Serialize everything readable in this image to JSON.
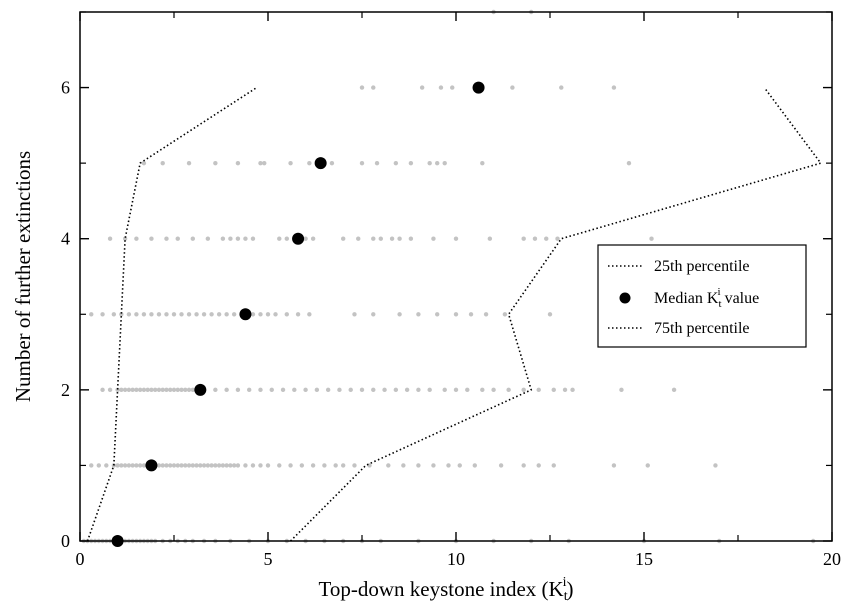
{
  "chart_data": {
    "type": "scatter",
    "xlabel": "Top-down keystone index (K",
    "xlabel_sub": "t",
    "xlabel_sup": "i",
    "xlabel_end": ")",
    "ylabel": "Number of further extinctions",
    "xlim": [
      0,
      20
    ],
    "ylim": [
      0,
      7
    ],
    "xticks": [
      0,
      5,
      10,
      15,
      20
    ],
    "yticks": [
      0,
      2,
      4,
      6
    ],
    "grid": false,
    "legend_position": "right",
    "legend": {
      "p25": "25th percentile",
      "median_prefix": "Median K",
      "median_sub": "t",
      "median_sup": "i",
      "median_suffix": " value",
      "p75": "75th percentile"
    },
    "series": [
      {
        "key": "p25",
        "style": "dotted-line",
        "points": [
          [
            0.2,
            0
          ],
          [
            0.9,
            1
          ],
          [
            1.0,
            2
          ],
          [
            1.1,
            3
          ],
          [
            1.2,
            4
          ],
          [
            1.6,
            5
          ],
          [
            4.7,
            6
          ]
        ]
      },
      {
        "key": "median",
        "style": "marker",
        "points": [
          [
            1.0,
            0
          ],
          [
            1.9,
            1
          ],
          [
            3.2,
            2
          ],
          [
            4.4,
            3
          ],
          [
            5.8,
            4
          ],
          [
            6.4,
            5
          ],
          [
            10.6,
            6
          ]
        ]
      },
      {
        "key": "p75",
        "style": "dotted-line",
        "points": [
          [
            5.6,
            0
          ],
          [
            7.6,
            1
          ],
          [
            12.0,
            2
          ],
          [
            11.4,
            3
          ],
          [
            12.8,
            4
          ],
          [
            19.7,
            5
          ],
          [
            18.2,
            6
          ]
        ]
      }
    ],
    "observations": [
      {
        "y": 0,
        "x": [
          0.1,
          0.2,
          0.3,
          0.4,
          0.5,
          0.6,
          0.7,
          0.8,
          0.9,
          1.0,
          1.1,
          1.2,
          1.3,
          1.4,
          1.5,
          1.6,
          1.7,
          1.8,
          1.9,
          2.0,
          2.2,
          2.4,
          2.6,
          2.8,
          3.0,
          3.3,
          3.6,
          4.0,
          4.5,
          5.0,
          5.5,
          6.0,
          6.5,
          7.0,
          7.5,
          8.0,
          9.0,
          10.0,
          11.0,
          12.0,
          13.0,
          15.0,
          17.0,
          19.5
        ]
      },
      {
        "y": 1,
        "x": [
          0.3,
          0.5,
          0.7,
          0.9,
          1.0,
          1.1,
          1.2,
          1.3,
          1.4,
          1.5,
          1.6,
          1.7,
          1.8,
          1.9,
          2.0,
          2.1,
          2.2,
          2.3,
          2.4,
          2.5,
          2.6,
          2.7,
          2.8,
          2.9,
          3.0,
          3.1,
          3.2,
          3.3,
          3.4,
          3.5,
          3.6,
          3.7,
          3.8,
          3.9,
          4.0,
          4.1,
          4.2,
          4.4,
          4.6,
          4.8,
          5.0,
          5.3,
          5.6,
          5.9,
          6.2,
          6.5,
          6.8,
          7.0,
          7.3,
          7.7,
          8.2,
          8.6,
          9.0,
          9.4,
          9.8,
          10.1,
          10.5,
          11.2,
          11.8,
          12.2,
          12.6,
          14.2,
          15.1,
          16.9
        ]
      },
      {
        "y": 2,
        "x": [
          0.6,
          0.8,
          1.0,
          1.1,
          1.2,
          1.3,
          1.4,
          1.5,
          1.6,
          1.7,
          1.8,
          1.9,
          2.0,
          2.1,
          2.2,
          2.3,
          2.4,
          2.5,
          2.6,
          2.7,
          2.8,
          2.9,
          3.0,
          3.3,
          3.6,
          3.9,
          4.2,
          4.5,
          4.8,
          5.1,
          5.4,
          5.7,
          6.0,
          6.3,
          6.6,
          6.9,
          7.2,
          7.5,
          7.8,
          8.1,
          8.4,
          8.7,
          9.0,
          9.3,
          9.7,
          10.0,
          10.3,
          10.7,
          11.0,
          11.4,
          11.8,
          12.2,
          12.6,
          12.9,
          13.1,
          14.4,
          15.8
        ]
      },
      {
        "y": 3,
        "x": [
          0.3,
          0.6,
          0.9,
          1.1,
          1.3,
          1.5,
          1.7,
          1.9,
          2.1,
          2.3,
          2.5,
          2.7,
          2.9,
          3.1,
          3.3,
          3.5,
          3.7,
          3.9,
          4.1,
          4.3,
          4.6,
          4.8,
          5.0,
          5.2,
          5.5,
          5.8,
          6.1,
          7.3,
          7.8,
          8.5,
          9.0,
          9.5,
          10.0,
          10.4,
          10.8,
          11.3,
          12.5
        ]
      },
      {
        "y": 4,
        "x": [
          0.8,
          1.2,
          1.5,
          1.9,
          2.3,
          2.6,
          3.0,
          3.4,
          3.8,
          4.0,
          4.2,
          4.4,
          4.6,
          5.3,
          5.5,
          5.7,
          6.0,
          6.2,
          7.0,
          7.4,
          7.8,
          8.0,
          8.3,
          8.5,
          8.8,
          9.4,
          10.0,
          10.9,
          11.8,
          12.1,
          12.4,
          12.7,
          15.2
        ]
      },
      {
        "y": 5,
        "x": [
          1.7,
          2.2,
          2.9,
          3.6,
          4.2,
          4.8,
          4.9,
          5.6,
          6.1,
          6.7,
          7.5,
          7.9,
          8.4,
          8.8,
          9.3,
          9.5,
          9.7,
          10.7,
          14.6
        ]
      },
      {
        "y": 6,
        "x": [
          7.5,
          7.8,
          9.1,
          9.6,
          9.9,
          11.5,
          12.8,
          14.2
        ]
      },
      {
        "y": 7,
        "x": [
          11.0,
          12.0
        ]
      }
    ]
  }
}
